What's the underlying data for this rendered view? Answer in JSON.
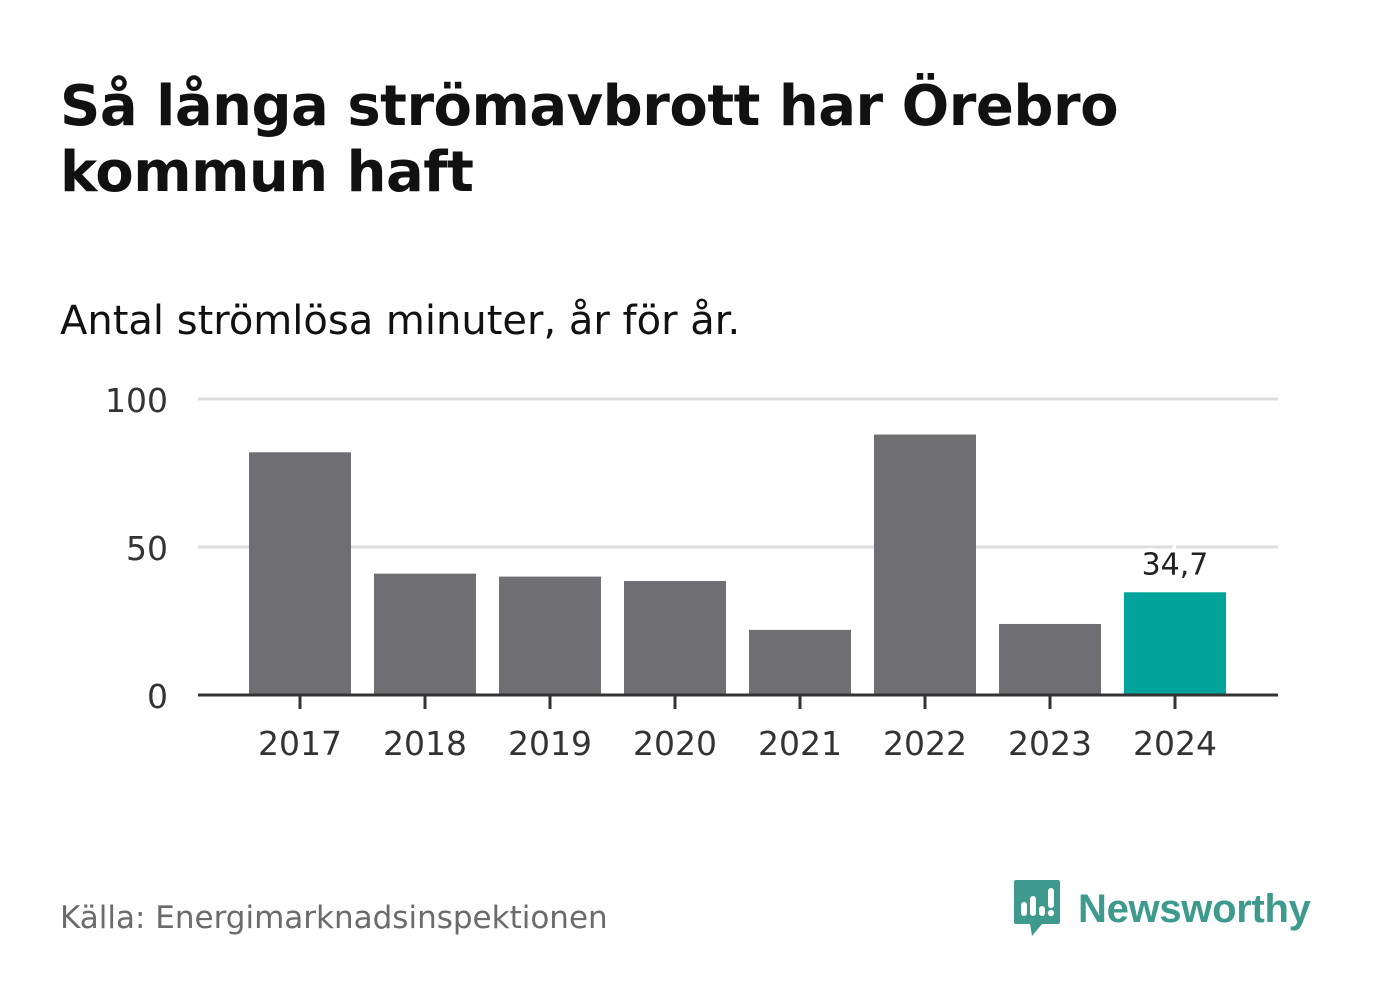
{
  "header": {
    "title": "Så långa strömavbrott har Örebro kommun haft",
    "subtitle": "Antal strömlösa minuter, år för år."
  },
  "footer": {
    "source": "Källa: Energimarknadsinspektionen",
    "brand": "Newsworthy"
  },
  "icons": {
    "logo": "newsworthy-logo-icon"
  },
  "colors": {
    "bar": "#6f6e73",
    "highlight": "#00a49a",
    "grid": "#dddddd",
    "axis": "#333333",
    "brand": "#3e9a8d"
  },
  "chart_data": {
    "type": "bar",
    "title": "Så långa strömavbrott har Örebro kommun haft",
    "subtitle": "Antal strömlösa minuter, år för år.",
    "categories": [
      "2017",
      "2018",
      "2019",
      "2020",
      "2021",
      "2022",
      "2023",
      "2024"
    ],
    "values": [
      82,
      41,
      40,
      38.5,
      22,
      88,
      24,
      34.7
    ],
    "highlight_index": 7,
    "data_labels": [
      {
        "index": 7,
        "text": "34,7"
      }
    ],
    "yticks": [
      0,
      50,
      100
    ],
    "ylim": [
      0,
      100
    ],
    "grid": true,
    "legend": "none"
  }
}
